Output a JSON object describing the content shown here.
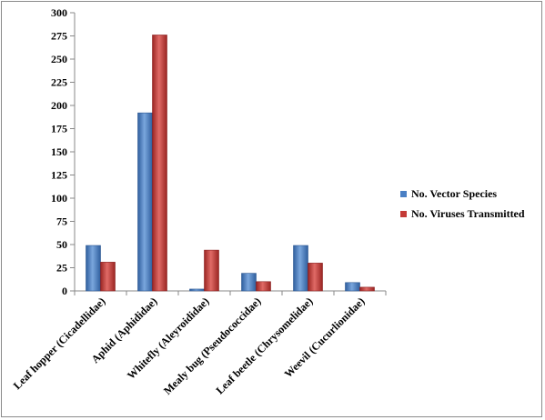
{
  "chart_data": {
    "type": "bar",
    "title": "",
    "xlabel": "",
    "ylabel": "",
    "ylim": [
      0,
      300
    ],
    "yticks": [
      0,
      25,
      50,
      75,
      100,
      125,
      150,
      175,
      200,
      225,
      250,
      275,
      300
    ],
    "grid": false,
    "legend_position": "right",
    "categories": [
      "Leaf hopper (Cicadellidae)",
      "Aphid (Aphididae)",
      "Whitefly (Aleyroididae)",
      "Mealy bug (Pseudococcidae)",
      "Leaf beetle (Chrysomelidae)",
      "Weevil (Cucurlionidae)"
    ],
    "series": [
      {
        "name": "No. Vector Species",
        "color": "#4a7fc4",
        "values": [
          49,
          192,
          2,
          19,
          49,
          9
        ]
      },
      {
        "name": "No. Viruses Transmitted",
        "color": "#c43a36",
        "values": [
          31,
          276,
          44,
          10,
          30,
          4
        ]
      }
    ]
  }
}
